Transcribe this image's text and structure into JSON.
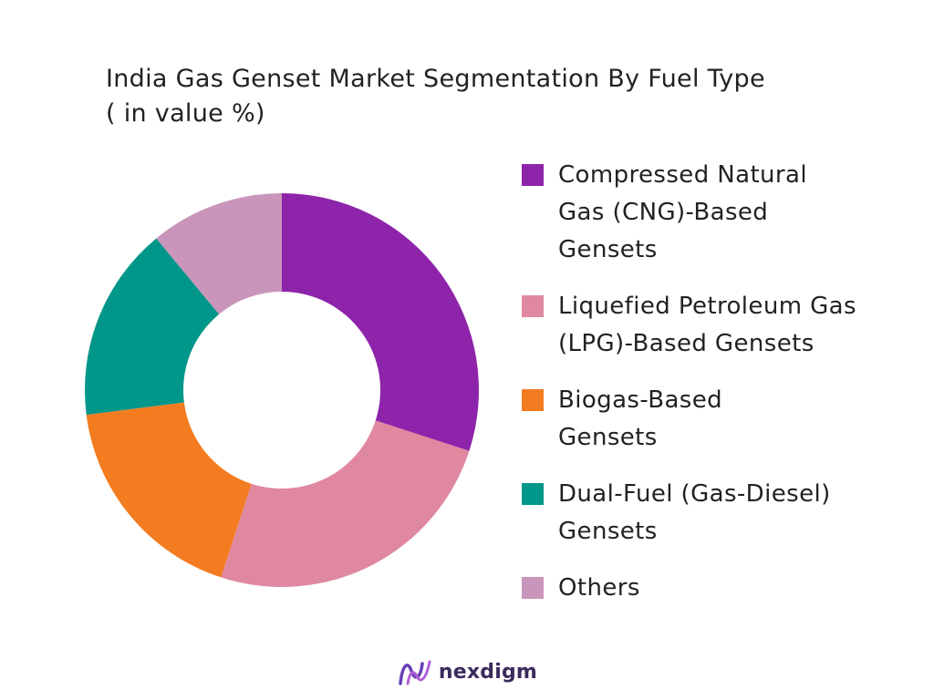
{
  "chart_data": {
    "type": "pie",
    "title": "India Gas Genset Market Segmentation By Fuel Type",
    "subtitle": "( in value %)",
    "donut": true,
    "categories": [
      "Compressed Natural Gas (CNG)-Based Gensets",
      "Liquefied Petroleum Gas (LPG)-Based Gensets",
      "Biogas-Based Gensets",
      "Dual-Fuel (Gas-Diesel) Gensets",
      "Others"
    ],
    "values": [
      30,
      25,
      18,
      16,
      11
    ],
    "colors": [
      "#8E24AA",
      "#E088A0",
      "#F47C20",
      "#00968A",
      "#C995BA"
    ],
    "legend": "right"
  },
  "legend_lines": [
    [
      "Compressed Natural",
      "Gas (CNG)-Based",
      "Gensets"
    ],
    [
      "Liquefied Petroleum Gas",
      "(LPG)-Based Gensets"
    ],
    [
      "Biogas-Based",
      "Gensets"
    ],
    [
      "Dual-Fuel (Gas-Diesel)",
      "Gensets"
    ],
    [
      "Others"
    ]
  ],
  "brand": {
    "name": "nexdigm",
    "icon": "nexdigm-logo-icon",
    "color": "#3a2a5c"
  }
}
